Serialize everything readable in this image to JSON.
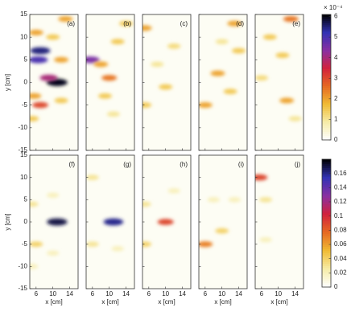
{
  "chart_data": [
    {
      "type": "heatmap",
      "xlabel": "x [cm]",
      "ylabel": "y [cm]",
      "xlim": [
        4.5,
        16
      ],
      "xticks": [
        6,
        10,
        14
      ],
      "ylim": [
        -15,
        15
      ],
      "yticks": [
        -15,
        -10,
        -5,
        0,
        5,
        10,
        15
      ],
      "colormap": [
        "#ffffff",
        "#f6eca8",
        "#f0bb34",
        "#e66a22",
        "#d2223c",
        "#8a30a2",
        "#3232b4",
        "#000000"
      ],
      "colorbar": {
        "lim": [
          0,
          6.1
        ],
        "ticks": [
          0,
          1,
          2,
          3,
          4,
          5,
          6
        ],
        "multiplier": "× 10⁻⁴"
      },
      "panels": [
        {
          "label": "(a)",
          "spots": [
            {
              "x": 6,
              "y": 11,
              "value": 2
            },
            {
              "x": 7,
              "y": 7,
              "value": 5.5
            },
            {
              "x": 6.5,
              "y": 5,
              "value": 5
            },
            {
              "x": 11,
              "y": 0,
              "value": 6
            },
            {
              "x": 9,
              "y": 1,
              "value": 4
            },
            {
              "x": 7,
              "y": -5,
              "value": 3
            },
            {
              "x": 5.5,
              "y": -3,
              "value": 2
            },
            {
              "x": 13,
              "y": 14,
              "value": 2
            },
            {
              "x": 10,
              "y": 10,
              "value": 1.5
            },
            {
              "x": 12,
              "y": 5,
              "value": 2
            },
            {
              "x": 12,
              "y": -4,
              "value": 1.5
            },
            {
              "x": 5,
              "y": -8,
              "value": 1.5
            }
          ]
        },
        {
          "label": "(b)",
          "spots": [
            {
              "x": 5.5,
              "y": 5,
              "value": 4.5
            },
            {
              "x": 10,
              "y": 1,
              "value": 2.5
            },
            {
              "x": 8,
              "y": 4,
              "value": 2
            },
            {
              "x": 12,
              "y": 9,
              "value": 1.5
            },
            {
              "x": 9,
              "y": -3,
              "value": 1.5
            },
            {
              "x": 14,
              "y": 13,
              "value": 1.5
            },
            {
              "x": 11,
              "y": -7,
              "value": 1
            }
          ]
        },
        {
          "label": "(c)",
          "spots": [
            {
              "x": 5,
              "y": 12,
              "value": 2
            },
            {
              "x": 5,
              "y": -5,
              "value": 1.5
            },
            {
              "x": 10,
              "y": -1,
              "value": 1.5
            },
            {
              "x": 12,
              "y": 8,
              "value": 1.2
            },
            {
              "x": 8,
              "y": 4,
              "value": 1
            }
          ]
        },
        {
          "label": "(d)",
          "spots": [
            {
              "x": 13,
              "y": 13,
              "value": 2
            },
            {
              "x": 14,
              "y": 7,
              "value": 1.5
            },
            {
              "x": 9,
              "y": 2,
              "value": 2
            },
            {
              "x": 6,
              "y": -5,
              "value": 2
            },
            {
              "x": 12,
              "y": -2,
              "value": 1.5
            },
            {
              "x": 10,
              "y": 9,
              "value": 1
            }
          ]
        },
        {
          "label": "(e)",
          "spots": [
            {
              "x": 13,
              "y": 14,
              "value": 2.5
            },
            {
              "x": 8,
              "y": 10,
              "value": 1.5
            },
            {
              "x": 11,
              "y": 6,
              "value": 1.5
            },
            {
              "x": 12,
              "y": -4,
              "value": 2
            },
            {
              "x": 6,
              "y": 1,
              "value": 1.2
            },
            {
              "x": 14,
              "y": -8,
              "value": 1
            }
          ]
        }
      ]
    },
    {
      "type": "heatmap",
      "xlabel": "x [cm]",
      "ylabel": "y [cm]",
      "xlim": [
        4.5,
        16
      ],
      "xticks": [
        6,
        10,
        14
      ],
      "ylim": [
        -15,
        15
      ],
      "yticks": [
        -15,
        -10,
        -5,
        0,
        5,
        10,
        15
      ],
      "colormap": [
        "#ffffff",
        "#f6eca8",
        "#f0bb34",
        "#e66a22",
        "#d2223c",
        "#8a30a2",
        "#3232b4",
        "#000000"
      ],
      "colorbar": {
        "lim": [
          0,
          0.18
        ],
        "ticks": [
          0,
          0.02,
          0.04,
          0.06,
          0.08,
          0.1,
          0.12,
          0.14,
          0.16
        ]
      },
      "panels": [
        {
          "label": "(f)",
          "spots": [
            {
              "x": 11,
              "y": 0,
              "value": 0.17
            },
            {
              "x": 6,
              "y": -5,
              "value": 0.04
            },
            {
              "x": 5,
              "y": 4,
              "value": 0.03
            },
            {
              "x": 10,
              "y": 6,
              "value": 0.02
            },
            {
              "x": 10,
              "y": -7,
              "value": 0.02
            },
            {
              "x": 5,
              "y": -10,
              "value": 0.02
            }
          ]
        },
        {
          "label": "(g)",
          "spots": [
            {
              "x": 11,
              "y": 0,
              "value": 0.16
            },
            {
              "x": 6,
              "y": 10,
              "value": 0.03
            },
            {
              "x": 6,
              "y": -5,
              "value": 0.03
            },
            {
              "x": 12,
              "y": -6,
              "value": 0.02
            }
          ]
        },
        {
          "label": "(h)",
          "spots": [
            {
              "x": 10,
              "y": 0,
              "value": 0.09
            },
            {
              "x": 5,
              "y": -5,
              "value": 0.04
            },
            {
              "x": 5,
              "y": 4,
              "value": 0.03
            },
            {
              "x": 12,
              "y": 7,
              "value": 0.02
            }
          ]
        },
        {
          "label": "(i)",
          "spots": [
            {
              "x": 6,
              "y": -5,
              "value": 0.07
            },
            {
              "x": 10,
              "y": -2,
              "value": 0.04
            },
            {
              "x": 13,
              "y": 5,
              "value": 0.02
            },
            {
              "x": 8,
              "y": 5,
              "value": 0.02
            }
          ]
        },
        {
          "label": "(j)",
          "spots": [
            {
              "x": 5.5,
              "y": 10,
              "value": 0.09
            },
            {
              "x": 7,
              "y": 5,
              "value": 0.03
            },
            {
              "x": 7,
              "y": -4,
              "value": 0.02
            }
          ]
        }
      ]
    }
  ]
}
